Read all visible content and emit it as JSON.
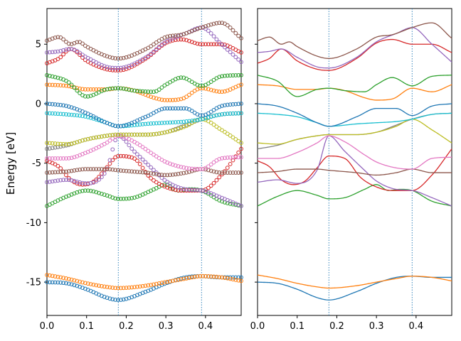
{
  "chart_data": {
    "type": "line",
    "ylabel": "Energy [eV]",
    "xlim": [
      0.0,
      0.49
    ],
    "ylim": [
      -17.8,
      8.0
    ],
    "x_ticks": [
      0.0,
      0.1,
      0.2,
      0.3,
      0.4
    ],
    "x_tick_labels": [
      "0.0",
      "0.1",
      "0.2",
      "0.3",
      "0.4"
    ],
    "y_ticks": [
      5,
      0,
      -5,
      -10,
      -15
    ],
    "y_tick_labels": [
      "5",
      "0",
      "-5",
      "-10",
      "-15"
    ],
    "high_symmetry_lines": [
      0.18,
      0.39
    ],
    "bands": [
      {
        "name": "band-1",
        "color": "#1f77b4",
        "x": [
          0.0,
          0.05,
          0.1,
          0.15,
          0.18,
          0.25,
          0.3,
          0.35,
          0.39,
          0.44,
          0.49
        ],
        "y": [
          -15.0,
          -15.1,
          -15.6,
          -16.3,
          -16.5,
          -15.8,
          -15.1,
          -14.6,
          -14.5,
          -14.6,
          -14.6
        ]
      },
      {
        "name": "band-2",
        "color": "#ff7f0e",
        "x": [
          0.0,
          0.05,
          0.1,
          0.15,
          0.18,
          0.25,
          0.3,
          0.35,
          0.39,
          0.44,
          0.49
        ],
        "y": [
          -14.4,
          -14.7,
          -15.1,
          -15.4,
          -15.5,
          -15.3,
          -15.0,
          -14.7,
          -14.5,
          -14.6,
          -14.9
        ]
      },
      {
        "name": "band-3",
        "color": "#2ca02c",
        "x": [
          0.0,
          0.05,
          0.1,
          0.15,
          0.18,
          0.22,
          0.27,
          0.3,
          0.33,
          0.36,
          0.39,
          0.44,
          0.49
        ],
        "y": [
          -8.6,
          -7.8,
          -7.3,
          -7.7,
          -8.0,
          -7.9,
          -7.2,
          -6.8,
          -7.3,
          -7.2,
          -7.3,
          -8.2,
          -8.6
        ]
      },
      {
        "name": "band-4",
        "color": "#d62728",
        "x": [
          0.0,
          0.03,
          0.06,
          0.09,
          0.12,
          0.15,
          0.18,
          0.22,
          0.26,
          0.3,
          0.34,
          0.39,
          0.44,
          0.49
        ],
        "y": [
          -4.8,
          -5.3,
          -6.4,
          -6.8,
          -6.5,
          -5.4,
          -4.4,
          -4.6,
          -6.2,
          -7.0,
          -7.3,
          -7.3,
          -6.0,
          -3.8
        ]
      },
      {
        "name": "band-5",
        "color": "#9467bd",
        "x": [
          0.0,
          0.05,
          0.1,
          0.15,
          0.18,
          0.22,
          0.27,
          0.3,
          0.35,
          0.39,
          0.44,
          0.49
        ],
        "y": [
          -6.6,
          -6.4,
          -6.7,
          -5.6,
          -2.7,
          -4.0,
          -5.6,
          -6.5,
          -7.2,
          -7.3,
          -7.9,
          -8.6
        ]
      },
      {
        "name": "band-6",
        "color": "#8c564b",
        "x": [
          0.0,
          0.05,
          0.1,
          0.15,
          0.18,
          0.25,
          0.3,
          0.35,
          0.39,
          0.44,
          0.49
        ],
        "y": [
          -5.8,
          -5.7,
          -5.5,
          -5.5,
          -5.6,
          -5.8,
          -6.0,
          -5.8,
          -5.5,
          -5.8,
          -5.8
        ]
      },
      {
        "name": "band-7",
        "color": "#e377c2",
        "x": [
          0.0,
          0.05,
          0.1,
          0.15,
          0.18,
          0.22,
          0.27,
          0.3,
          0.35,
          0.39,
          0.44,
          0.49
        ],
        "y": [
          -4.6,
          -4.6,
          -4.1,
          -3.3,
          -2.7,
          -3.2,
          -4.3,
          -4.9,
          -5.4,
          -5.5,
          -4.6,
          -4.5
        ]
      },
      {
        "name": "band-8",
        "color": "#7f7f7f",
        "x": [
          0.0,
          0.05,
          0.1,
          0.15,
          0.18,
          0.25,
          0.3,
          0.35,
          0.39,
          0.44,
          0.49
        ],
        "y": [
          -3.8,
          -3.5,
          -3.0,
          -2.7,
          -2.6,
          -2.6,
          -2.4,
          -1.8,
          -1.3,
          -0.9,
          -0.8
        ]
      },
      {
        "name": "band-9",
        "color": "#bcbd22",
        "x": [
          0.0,
          0.05,
          0.1,
          0.15,
          0.18,
          0.25,
          0.3,
          0.35,
          0.39,
          0.44,
          0.49
        ],
        "y": [
          -3.3,
          -3.4,
          -3.0,
          -2.7,
          -2.6,
          -2.6,
          -2.4,
          -1.9,
          -1.3,
          -2.2,
          -3.3
        ]
      },
      {
        "name": "band-10",
        "color": "#17becf",
        "x": [
          0.0,
          0.05,
          0.1,
          0.15,
          0.18,
          0.25,
          0.3,
          0.35,
          0.39,
          0.44,
          0.49
        ],
        "y": [
          -0.8,
          -0.9,
          -1.1,
          -1.6,
          -1.9,
          -1.7,
          -1.6,
          -1.5,
          -1.3,
          -0.9,
          -0.8
        ]
      },
      {
        "name": "band-11",
        "color": "#1f77b4",
        "x": [
          0.0,
          0.05,
          0.1,
          0.15,
          0.18,
          0.25,
          0.3,
          0.35,
          0.39,
          0.44,
          0.49
        ],
        "y": [
          0.0,
          -0.2,
          -0.8,
          -1.6,
          -1.9,
          -1.1,
          -0.4,
          -0.4,
          -1.0,
          -0.2,
          0.0
        ]
      },
      {
        "name": "band-12",
        "color": "#ff7f0e",
        "x": [
          0.0,
          0.05,
          0.1,
          0.15,
          0.18,
          0.22,
          0.27,
          0.3,
          0.34,
          0.39,
          0.44,
          0.49
        ],
        "y": [
          1.6,
          1.5,
          1.2,
          1.2,
          1.3,
          1.1,
          0.5,
          0.3,
          0.4,
          1.3,
          1.0,
          1.6
        ]
      },
      {
        "name": "band-13",
        "color": "#2ca02c",
        "x": [
          0.0,
          0.05,
          0.1,
          0.15,
          0.18,
          0.22,
          0.27,
          0.3,
          0.34,
          0.39,
          0.44,
          0.49
        ],
        "y": [
          2.4,
          1.9,
          0.6,
          1.2,
          1.3,
          1.1,
          1.0,
          1.6,
          2.2,
          1.5,
          2.3,
          2.4
        ]
      },
      {
        "name": "band-14",
        "color": "#d62728",
        "x": [
          0.0,
          0.03,
          0.06,
          0.1,
          0.15,
          0.18,
          0.25,
          0.3,
          0.34,
          0.39,
          0.44,
          0.49
        ],
        "y": [
          3.4,
          3.8,
          4.6,
          3.6,
          2.9,
          2.8,
          3.8,
          5.1,
          5.4,
          5.0,
          5.0,
          4.3
        ]
      },
      {
        "name": "band-15",
        "color": "#9467bd",
        "x": [
          0.0,
          0.03,
          0.06,
          0.1,
          0.15,
          0.18,
          0.25,
          0.3,
          0.35,
          0.39,
          0.44,
          0.49
        ],
        "y": [
          4.3,
          4.4,
          4.6,
          3.9,
          3.1,
          3.0,
          3.9,
          5.2,
          5.9,
          6.4,
          5.0,
          3.5
        ]
      },
      {
        "name": "band-16",
        "color": "#8c564b",
        "x": [
          0.0,
          0.03,
          0.06,
          0.08,
          0.1,
          0.15,
          0.18,
          0.25,
          0.3,
          0.34,
          0.39,
          0.44,
          0.49
        ],
        "y": [
          5.3,
          5.6,
          5.0,
          5.2,
          4.8,
          4.0,
          3.8,
          4.6,
          5.6,
          5.8,
          6.4,
          6.8,
          5.5
        ]
      }
    ]
  }
}
